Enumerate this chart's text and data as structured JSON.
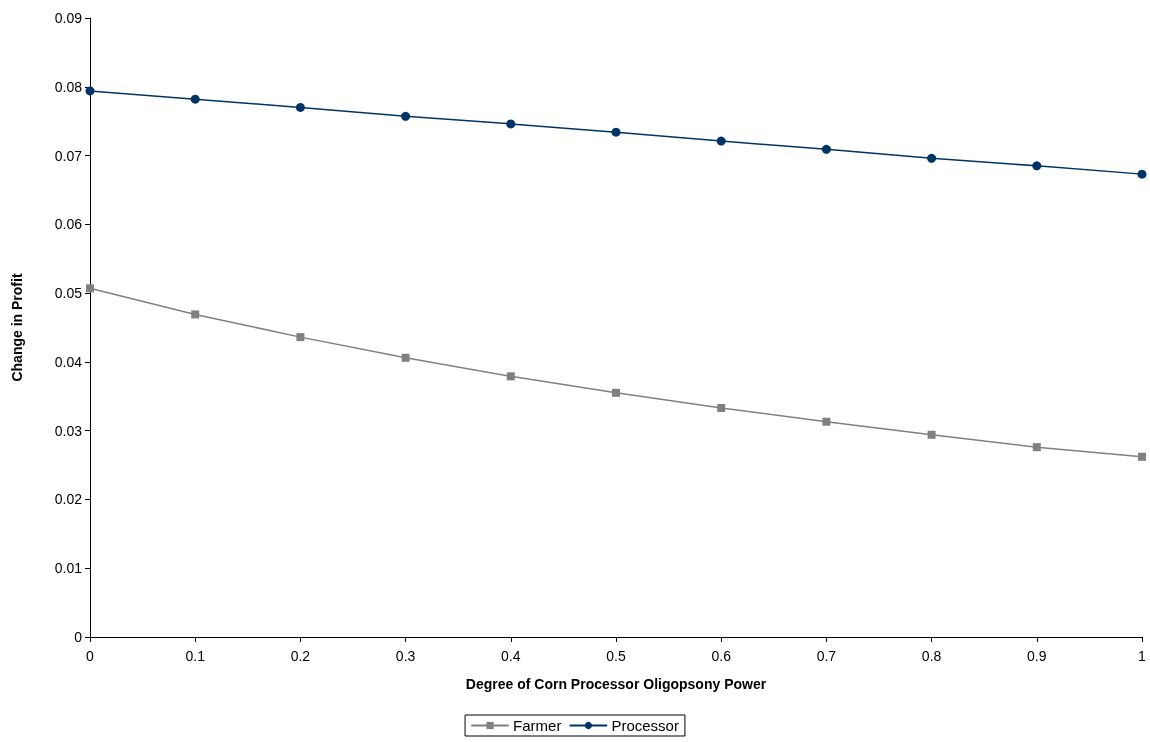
{
  "chart_data": {
    "type": "line",
    "xlabel": "Degree of Corn Processor Oligopsony Power",
    "ylabel": "Change in Profit",
    "x": [
      0,
      0.1,
      0.2,
      0.3,
      0.4,
      0.5,
      0.6,
      0.7,
      0.8,
      0.9,
      1
    ],
    "series": [
      {
        "name": "Farmer",
        "color": "#808080",
        "marker": "square",
        "values": [
          0.0507,
          0.0469,
          0.0436,
          0.0406,
          0.0379,
          0.0355,
          0.0333,
          0.0313,
          0.0294,
          0.0276,
          0.0262
        ]
      },
      {
        "name": "Processor",
        "color": "#003366",
        "marker": "circle",
        "values": [
          0.0794,
          0.0782,
          0.077,
          0.0757,
          0.0746,
          0.0734,
          0.0721,
          0.0709,
          0.0696,
          0.0685,
          0.0673
        ]
      }
    ],
    "xlim": [
      0,
      1
    ],
    "xticks": [
      0,
      0.1,
      0.2,
      0.3,
      0.4,
      0.5,
      0.6,
      0.7,
      0.8,
      0.9,
      1
    ],
    "ylim": [
      0,
      0.09
    ],
    "yticks": [
      0,
      0.01,
      0.02,
      0.03,
      0.04,
      0.05,
      0.06,
      0.07,
      0.08,
      0.09
    ],
    "grid": false,
    "legend": "bottom",
    "line_style": "solid"
  }
}
